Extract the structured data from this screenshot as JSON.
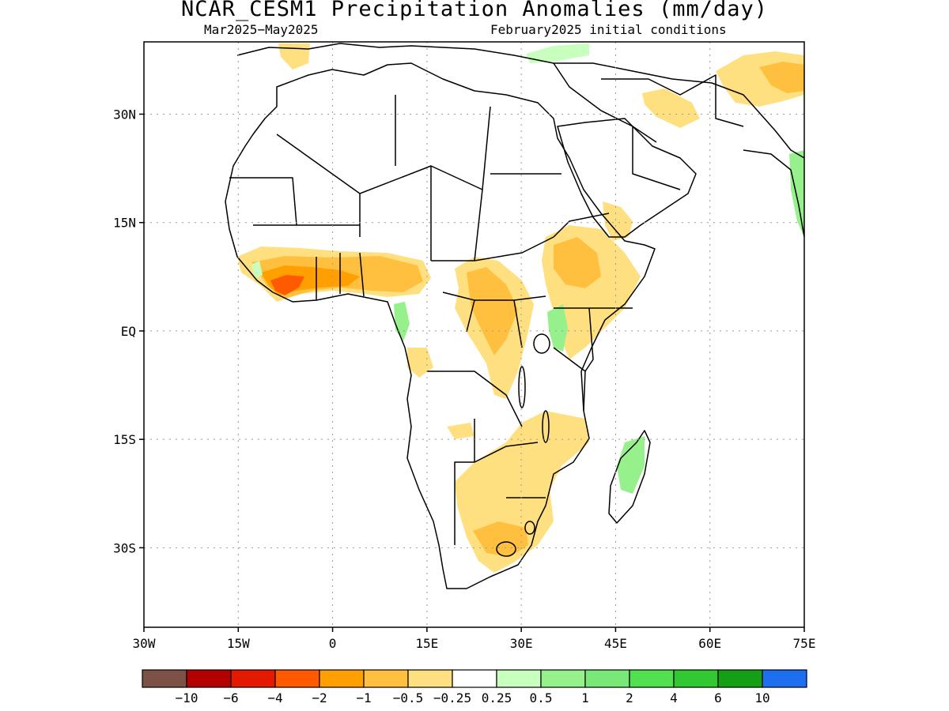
{
  "header": {
    "title": "NCAR_CESM1 Precipitation Anomalies (mm/day)",
    "season": "Mar2025−May2025",
    "init": "February2025 initial conditions"
  },
  "map": {
    "lon_range": [
      -30,
      75
    ],
    "lat_range": [
      -41,
      40
    ],
    "grid": "dotted",
    "y_ticks": [
      {
        "lat": 30,
        "label": "30N"
      },
      {
        "lat": 15,
        "label": "15N"
      },
      {
        "lat": 0,
        "label": "EQ"
      },
      {
        "lat": -15,
        "label": "15S"
      },
      {
        "lat": -30,
        "label": "30S"
      }
    ],
    "x_ticks": [
      {
        "lon": -30,
        "label": "30W"
      },
      {
        "lon": -15,
        "label": "15W"
      },
      {
        "lon": 0,
        "label": "0"
      },
      {
        "lon": 15,
        "label": "15E"
      },
      {
        "lon": 30,
        "label": "30E"
      },
      {
        "lon": 45,
        "label": "45E"
      },
      {
        "lon": 60,
        "label": "60E"
      },
      {
        "lon": 75,
        "label": "75E"
      }
    ]
  },
  "colorbar": {
    "colors": [
      "#7b5245",
      "#b30000",
      "#e31a00",
      "#ff5a00",
      "#ffa000",
      "#ffc040",
      "#ffe080",
      "#ffffff",
      "#c8ffbe",
      "#96f08c",
      "#78e878",
      "#50e050",
      "#32c832",
      "#14a014",
      "#1e6ef0"
    ],
    "labels": [
      "−10",
      "−6",
      "−4",
      "−2",
      "−1",
      "−0.5",
      "−0.25",
      "0.25",
      "0.5",
      "1",
      "2",
      "4",
      "6",
      "10"
    ]
  }
}
